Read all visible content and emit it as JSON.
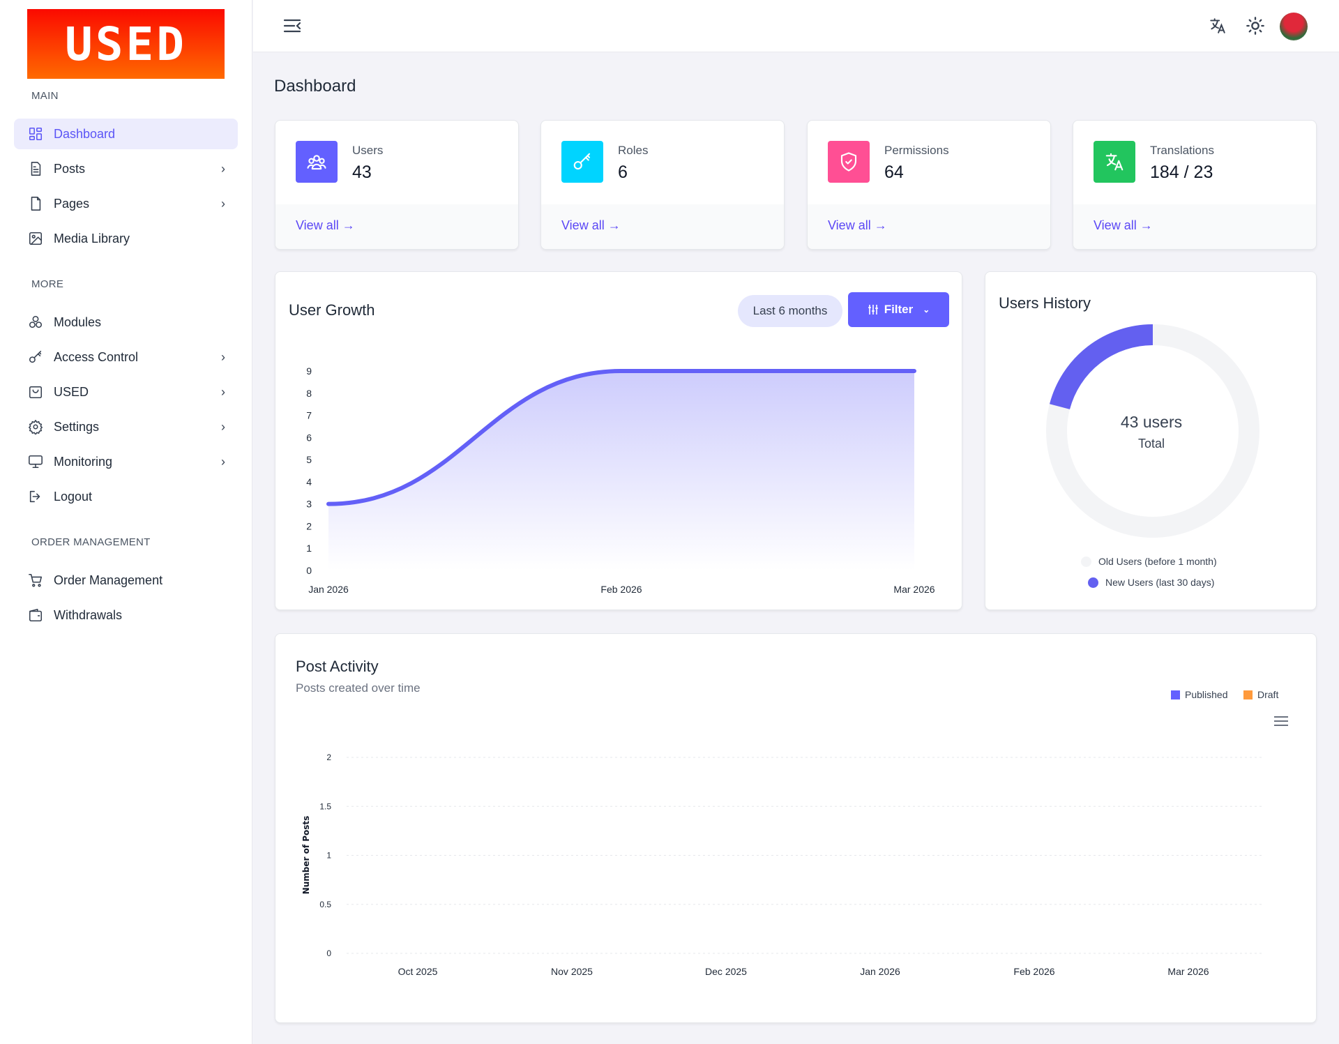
{
  "brand": {
    "logo_text": "USED",
    "colors": {
      "accent": "#6360f7",
      "logo_top": "#fb0a00",
      "logo_bottom": "#ff6a00"
    }
  },
  "sidebar": {
    "sections": [
      {
        "label": "MAIN",
        "items": [
          {
            "label": "Dashboard",
            "icon": "grid-icon",
            "active": true
          },
          {
            "label": "Posts",
            "icon": "document-icon",
            "chevron": true
          },
          {
            "label": "Pages",
            "icon": "page-icon",
            "chevron": true
          },
          {
            "label": "Media Library",
            "icon": "image-icon"
          }
        ]
      },
      {
        "label": "MORE",
        "items": [
          {
            "label": "Modules",
            "icon": "modules-icon"
          },
          {
            "label": "Access Control",
            "icon": "key-icon",
            "chevron": true
          },
          {
            "label": "USED",
            "icon": "bag-icon",
            "chevron": true
          },
          {
            "label": "Settings",
            "icon": "gear-icon",
            "chevron": true
          },
          {
            "label": "Monitoring",
            "icon": "monitor-icon",
            "chevron": true
          },
          {
            "label": "Logout",
            "icon": "logout-icon"
          }
        ]
      },
      {
        "label": "ORDER MANAGEMENT",
        "items": [
          {
            "label": "Order Management",
            "icon": "cart-icon"
          },
          {
            "label": "Withdrawals",
            "icon": "wallet-icon"
          }
        ]
      }
    ]
  },
  "header": {
    "icons": [
      "menu-collapse-icon",
      "translate-icon",
      "sun-icon",
      "avatar"
    ]
  },
  "page": {
    "title": "Dashboard"
  },
  "stats": [
    {
      "label": "Users",
      "value": "43",
      "link": "View all",
      "icon": "users-icon",
      "color": "#6360ff"
    },
    {
      "label": "Roles",
      "value": "6",
      "link": "View all",
      "icon": "key-icon",
      "color": "#00d4ff"
    },
    {
      "label": "Permissions",
      "value": "64",
      "link": "View all",
      "icon": "shield-icon",
      "color": "#ff4f94"
    },
    {
      "label": "Translations",
      "value": "184 / 23",
      "link": "View all",
      "icon": "translate-icon",
      "color": "#22c55e"
    }
  ],
  "user_growth": {
    "title": "User Growth",
    "range_button": "Last 6 months",
    "filter_button": "Filter"
  },
  "users_history": {
    "title": "Users History",
    "center_value": "43 users",
    "center_label": "Total"
  },
  "post_activity": {
    "title": "Post Activity",
    "subtitle": "Posts created over time"
  },
  "chart_data": [
    {
      "type": "area",
      "title": "User Growth",
      "categories": [
        "Jan 2026",
        "Feb 2026",
        "Mar 2026"
      ],
      "values": [
        3,
        9,
        9
      ],
      "yticks": [
        "0",
        "1",
        "2",
        "3",
        "4",
        "5",
        "6",
        "7",
        "8",
        "9"
      ],
      "ylim": [
        0,
        9
      ],
      "color": "#6360f7",
      "grid": false
    },
    {
      "type": "pie",
      "title": "Users History",
      "series": [
        {
          "name": "Old Users (before 1 month)",
          "value": 34,
          "color": "#f3f4f6"
        },
        {
          "name": "New Users (last 30 days)",
          "value": 9,
          "color": "#6360f0"
        }
      ],
      "legend": "bottom"
    },
    {
      "type": "line",
      "title": "Post Activity",
      "categories": [
        "Oct 2025",
        "Nov 2025",
        "Dec 2025",
        "Jan 2026",
        "Feb 2026",
        "Mar 2026"
      ],
      "ylabel": "Number of Posts",
      "yticks": [
        "0",
        "0.5",
        "1",
        "1.5",
        "2"
      ],
      "ylim": [
        0,
        2
      ],
      "grid": true,
      "legend": "top-right",
      "series": [
        {
          "name": "Published",
          "color": "#6360ff",
          "values": [
            0,
            0,
            0,
            0,
            0,
            0
          ]
        },
        {
          "name": "Draft",
          "color": "#ff9a3c",
          "values": [
            0,
            0,
            0,
            0,
            0,
            0
          ]
        }
      ]
    }
  ]
}
